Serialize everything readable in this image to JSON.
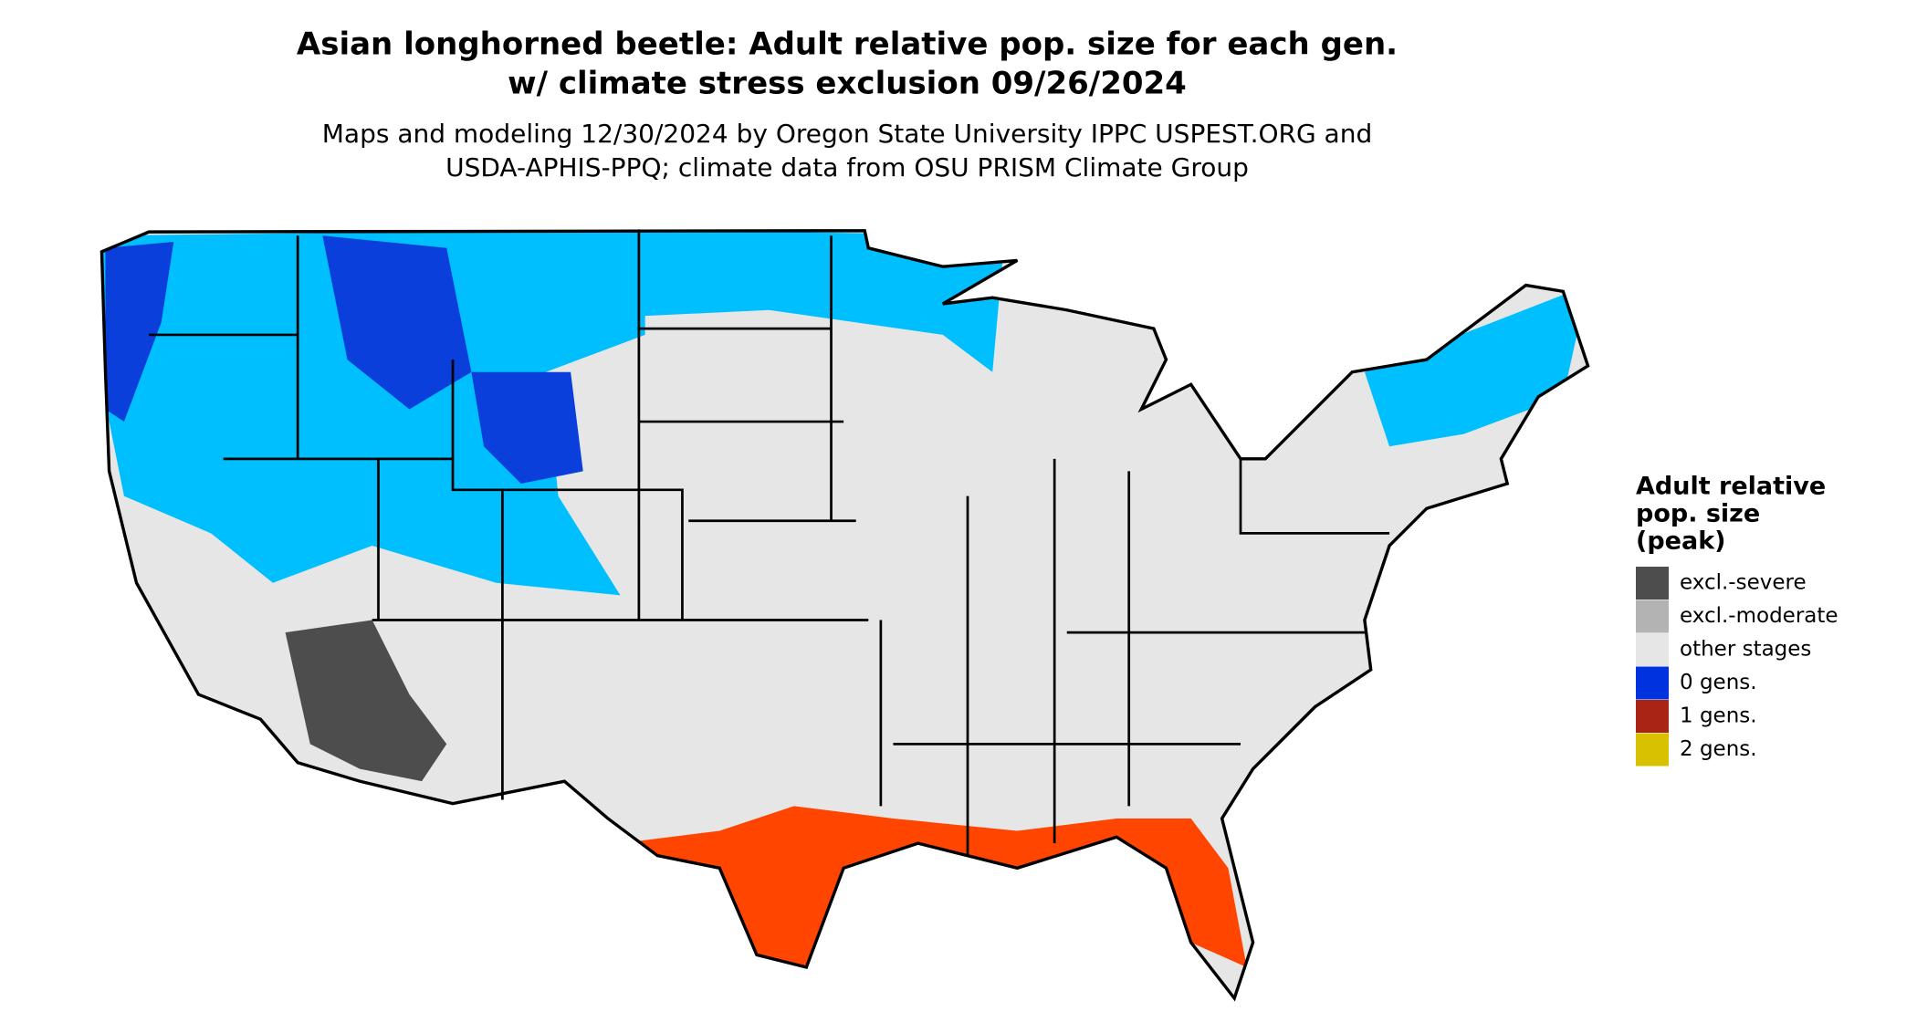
{
  "header": {
    "title_lines": [
      "Asian longhorned beetle: Adult relative pop. size for each gen.",
      "w/ climate stress exclusion 09/26/2024"
    ],
    "subtitle_lines": [
      "Maps and modeling 12/30/2024 by Oregon State University IPPC USPEST.ORG and",
      "USDA-APHIS-PPQ; climate data from OSU PRISM Climate Group"
    ]
  },
  "legend": {
    "title_lines": [
      "Adult relative",
      "pop. size",
      "(peak)"
    ],
    "items": [
      {
        "label": "excl.-severe",
        "color": "#4d4d4d"
      },
      {
        "label": "excl.-moderate",
        "color": "#b3b3b3"
      },
      {
        "label": "other stages",
        "color": "#e6e6e6"
      },
      {
        "label": "0 gens.",
        "color": "#0033dd"
      },
      {
        "label": "1 gens.",
        "color": "#a82414"
      },
      {
        "label": "2 gens.",
        "color": "#d8c200"
      }
    ]
  }
}
